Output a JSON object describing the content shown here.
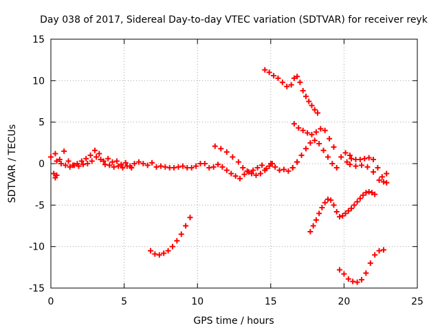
{
  "chart_data": {
    "type": "scatter",
    "title": "Day 038 of 2017, Sidereal Day-to-day VTEC variation (SDTVAR) for receiver reyk",
    "xlabel": "GPS time / hours",
    "ylabel": "SDTVAR / TECUs",
    "xlim": [
      0,
      25
    ],
    "ylim": [
      -15,
      15
    ],
    "xticks": [
      "0",
      "5",
      "10",
      "15",
      "20",
      "25"
    ],
    "yticks": [
      "-15",
      "-10",
      "-5",
      "0",
      "5",
      "10",
      "15"
    ],
    "grid": true,
    "marker": "+",
    "color": "#ff0000",
    "series": [
      {
        "name": "main-band",
        "x": [
          0.0,
          0.3,
          0.6,
          0.9,
          1.2,
          1.5,
          1.8,
          2.1,
          2.4,
          2.7,
          3.0,
          3.3,
          3.6,
          3.9,
          4.2,
          4.5,
          4.8,
          5.1,
          5.4,
          5.7,
          6.0,
          6.3,
          6.6,
          6.9,
          7.2,
          7.5,
          7.8,
          8.1,
          8.4,
          8.7,
          9.0,
          9.3,
          9.6,
          9.9,
          10.2,
          10.5,
          10.8,
          11.1,
          11.4,
          11.7,
          12.0,
          12.3,
          12.6,
          12.9,
          13.2,
          13.5,
          13.8,
          14.1,
          14.4,
          14.7,
          15.0,
          15.3,
          15.6,
          15.9,
          16.2,
          16.5,
          16.8
        ],
        "y": [
          0.8,
          1.2,
          0.5,
          1.5,
          0.3,
          -0.2,
          0.0,
          0.3,
          0.6,
          1.0,
          1.6,
          1.2,
          0.3,
          0.6,
          0.2,
          0.3,
          -0.1,
          0.1,
          -0.3,
          0.0,
          0.2,
          0.0,
          -0.2,
          0.1,
          -0.4,
          -0.3,
          -0.4,
          -0.5,
          -0.5,
          -0.4,
          -0.3,
          -0.5,
          -0.5,
          -0.3,
          0.0,
          0.0,
          -0.5,
          -0.4,
          -0.1,
          -0.4,
          -0.8,
          -1.2,
          -1.5,
          -1.8,
          -1.3,
          -1.0,
          -0.8,
          -0.5,
          -0.2,
          -0.6,
          0.0,
          -0.4,
          -0.8,
          -0.7,
          -0.9,
          -0.5,
          0.2
        ]
      },
      {
        "name": "main-band-lower",
        "x": [
          0.4,
          0.7,
          1.0,
          1.3,
          1.6,
          1.9,
          2.2,
          2.5,
          2.8,
          3.1,
          3.4,
          3.7,
          4.0,
          4.3,
          4.6,
          4.9,
          5.2,
          5.5
        ],
        "y": [
          0.3,
          0.0,
          -0.2,
          -0.4,
          -0.2,
          -0.3,
          -0.1,
          0.0,
          0.3,
          0.8,
          0.5,
          -0.1,
          -0.2,
          -0.4,
          -0.3,
          -0.5,
          -0.3,
          -0.5
        ]
      },
      {
        "name": "left-dip",
        "x": [
          0.2,
          0.3,
          0.4
        ],
        "y": [
          -1.2,
          -1.7,
          -1.4
        ]
      },
      {
        "name": "arc-11-13",
        "x": [
          11.2,
          11.6,
          12.0,
          12.4,
          12.8,
          13.1,
          13.4,
          13.7,
          14.0,
          14.3,
          14.6,
          14.9,
          15.1
        ],
        "y": [
          2.1,
          1.8,
          1.4,
          0.8,
          0.2,
          -0.5,
          -0.9,
          -1.2,
          -1.4,
          -1.2,
          -0.8,
          -0.3,
          0.0
        ]
      },
      {
        "name": "arc-bottom-7-9",
        "x": [
          6.8,
          7.1,
          7.4,
          7.7,
          8.0,
          8.3,
          8.6,
          8.9,
          9.2,
          9.5
        ],
        "y": [
          -10.5,
          -10.9,
          -11.0,
          -10.8,
          -10.5,
          -10.0,
          -9.3,
          -8.5,
          -7.5,
          -6.5
        ]
      },
      {
        "name": "arc-top-14-18",
        "x": [
          14.6,
          14.9,
          15.2,
          15.5,
          15.8,
          16.1,
          16.4,
          16.6,
          16.8,
          17.0,
          17.2,
          17.4,
          17.6,
          17.8,
          18.0,
          18.2
        ],
        "y": [
          11.3,
          11.0,
          10.6,
          10.3,
          9.8,
          9.3,
          9.5,
          10.3,
          10.5,
          9.8,
          8.8,
          8.1,
          7.5,
          7.0,
          6.5,
          6.1
        ]
      },
      {
        "name": "arc-mid-16-19",
        "x": [
          16.6,
          16.9,
          17.2,
          17.5,
          17.8,
          18.1,
          18.4,
          18.7,
          19.0,
          19.3
        ],
        "y": [
          4.8,
          4.3,
          4.0,
          3.7,
          3.5,
          3.8,
          4.2,
          4.0,
          3.0,
          2.0
        ]
      },
      {
        "name": "arc-16-20",
        "x": [
          16.5,
          16.8,
          17.1,
          17.4,
          17.7,
          18.0,
          18.3,
          18.6,
          18.9,
          19.2,
          19.5,
          19.8,
          20.1,
          20.4
        ],
        "y": [
          -0.5,
          0.2,
          1.0,
          1.8,
          2.5,
          2.8,
          2.4,
          1.6,
          0.8,
          0.0,
          -0.5,
          0.8,
          1.3,
          1.0
        ]
      },
      {
        "name": "arc-neg-17-21",
        "x": [
          17.7,
          17.9,
          18.1,
          18.3,
          18.5,
          18.7,
          18.9,
          19.1,
          19.3,
          19.5,
          19.7,
          19.9,
          20.1,
          20.3,
          20.5,
          20.7,
          20.9,
          21.1,
          21.3,
          21.5,
          21.7,
          21.9,
          22.1
        ],
        "y": [
          -8.2,
          -7.5,
          -6.8,
          -6.0,
          -5.3,
          -4.7,
          -4.3,
          -4.4,
          -5.0,
          -5.8,
          -6.4,
          -6.3,
          -6.0,
          -5.7,
          -5.4,
          -5.0,
          -4.6,
          -4.2,
          -3.8,
          -3.5,
          -3.4,
          -3.5,
          -3.7
        ]
      },
      {
        "name": "arc-bottom-19-22",
        "x": [
          19.7,
          20.0,
          20.3,
          20.6,
          20.9,
          21.2,
          21.5,
          21.8,
          22.1,
          22.4,
          22.7
        ],
        "y": [
          -12.8,
          -13.3,
          -13.9,
          -14.2,
          -14.3,
          -14.0,
          -13.2,
          -12.0,
          -11.0,
          -10.5,
          -10.4
        ]
      },
      {
        "name": "arc-20-23",
        "x": [
          20.2,
          20.5,
          20.8,
          21.1,
          21.4,
          21.7,
          22.0,
          22.3,
          22.6,
          22.9
        ],
        "y": [
          0.2,
          0.6,
          0.5,
          0.5,
          0.6,
          0.7,
          0.5,
          -0.5,
          -1.6,
          -2.3
        ]
      },
      {
        "name": "arc-20-23b",
        "x": [
          20.4,
          20.8,
          21.2,
          21.6,
          22.0,
          22.4,
          22.7,
          22.9
        ],
        "y": [
          -0.1,
          -0.3,
          -0.2,
          -0.4,
          -1.0,
          -2.0,
          -2.2,
          -1.2
        ]
      }
    ]
  }
}
